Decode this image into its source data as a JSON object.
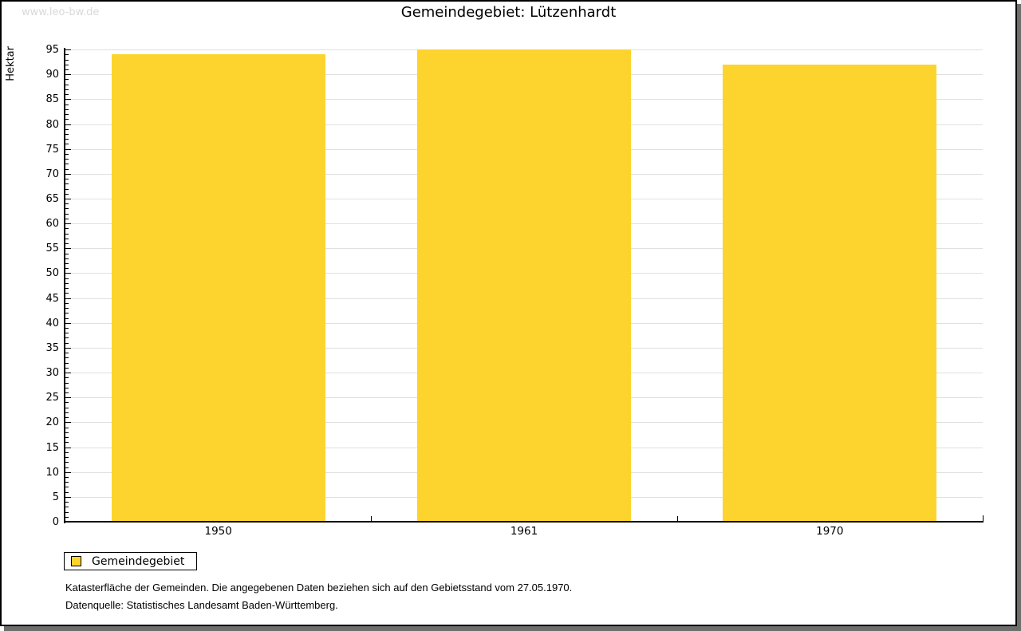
{
  "watermark": "www.leo-bw.de",
  "title": "Gemeindegebiet: Lützenhardt",
  "chart_data": {
    "type": "bar",
    "title": "Gemeindegebiet: Lützenhardt",
    "categories": [
      "1950",
      "1961",
      "1970"
    ],
    "series": [
      {
        "name": "Gemeindegebiet",
        "values": [
          94,
          95,
          92
        ]
      }
    ],
    "xlabel": "",
    "ylabel": "Hektar",
    "ylim": [
      0,
      95
    ],
    "ytick_step": 5,
    "yminor_step": 1,
    "grid": true,
    "bar_color": "#fcd42d",
    "gridline_color": "#e0e0e0",
    "legend_position": "bottom-left"
  },
  "legend": {
    "items": [
      {
        "label": "Gemeindegebiet",
        "color": "#fcd42d"
      }
    ]
  },
  "footnotes": [
    "Katasterfläche der Gemeinden. Die angegebenen Daten beziehen sich auf den Gebietsstand vom 27.05.1970.",
    "Datenquelle: Statistisches Landesamt Baden-Württemberg."
  ]
}
